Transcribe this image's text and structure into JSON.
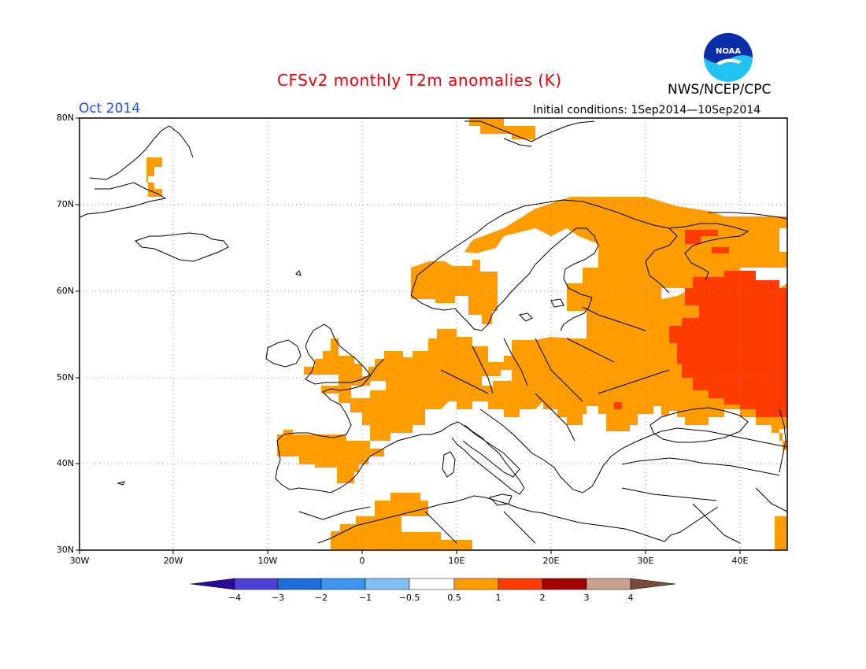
{
  "header": {
    "title": "CFSv2 monthly T2m anomalies (K)",
    "org": "NWS/NCEP/CPC",
    "month": "Oct 2014",
    "initial_conditions": "Initial conditions: 1Sep2014—10Sep2014",
    "logo_text": "NOAA"
  },
  "map": {
    "lat_labels": [
      "80N",
      "70N",
      "60N",
      "50N",
      "40N",
      "30N"
    ],
    "lon_labels": [
      "30W",
      "20W",
      "10W",
      "0",
      "10E",
      "20E",
      "30E",
      "40E"
    ],
    "extent": {
      "lon_min": -30,
      "lon_max": 45,
      "lat_min": 30,
      "lat_max": 80
    },
    "gridlines": "dotted",
    "anomaly_regions": [
      {
        "name": "svalbard",
        "category": "0.5 to 1"
      },
      {
        "name": "greenland-east-coast",
        "category": "0.5 to 1"
      },
      {
        "name": "northern-scandinavia",
        "category": "0.5 to 1"
      },
      {
        "name": "western-scandinavia",
        "category": "0.5 to 1"
      },
      {
        "name": "central-western-europe",
        "category": "0.5 to 1"
      },
      {
        "name": "iberia",
        "category": "0.5 to 1"
      },
      {
        "name": "north-africa",
        "category": "0.5 to 1"
      },
      {
        "name": "eastern-europe",
        "category": "0.5 to 1"
      },
      {
        "name": "western-russia",
        "category": "1 to 2"
      },
      {
        "name": "kola-peninsula",
        "category": "1 to 2"
      }
    ]
  },
  "colorbar": {
    "labels": [
      "−4",
      "−3",
      "−2",
      "−1",
      "−0.5",
      "0.5",
      "1",
      "2",
      "3",
      "4"
    ],
    "colors": [
      "#2a0a9a",
      "#4a40d6",
      "#1e6fd9",
      "#3c96ee",
      "#80bff5",
      "#ffffff",
      "#ff9c00",
      "#ff3c00",
      "#a30000",
      "#c8a08c",
      "#7a4a3a"
    ]
  }
}
